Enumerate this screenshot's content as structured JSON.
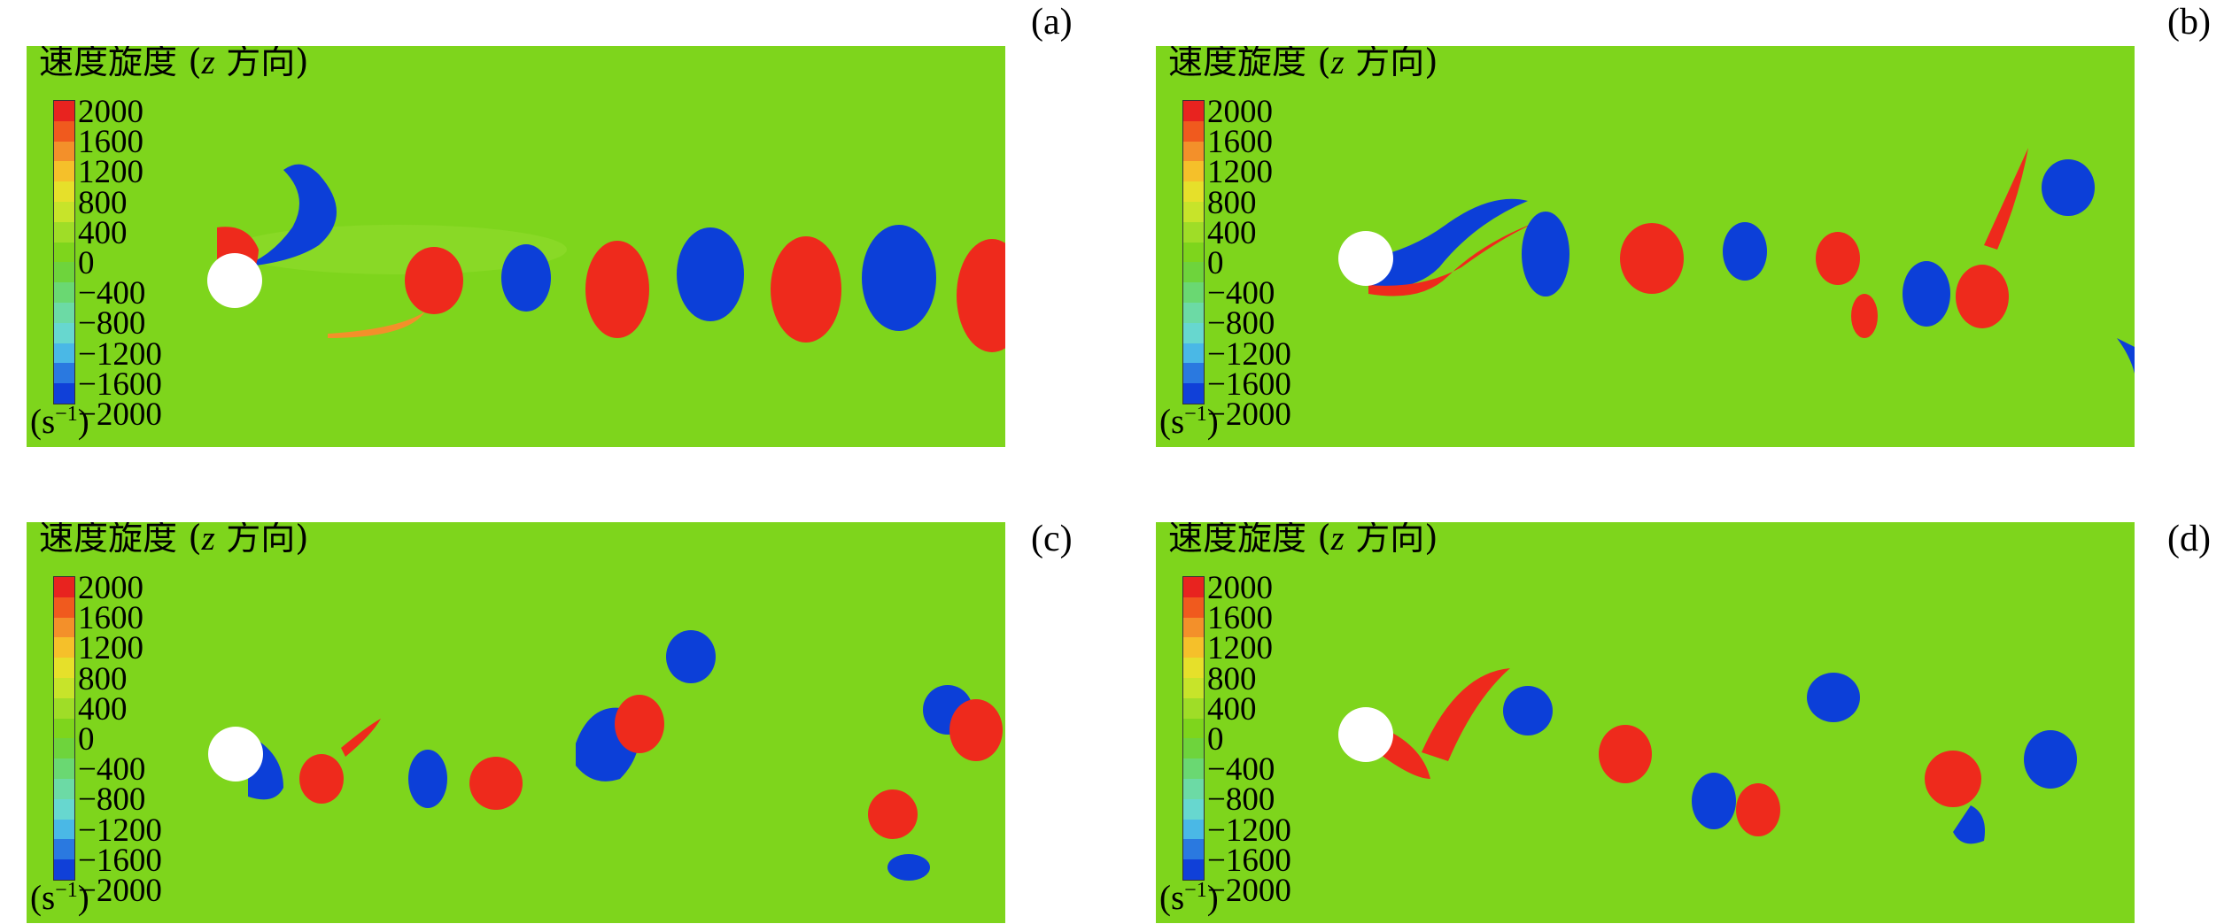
{
  "colorbar": {
    "title_main": "速度旋度 (",
    "title_var": "z",
    "title_tail": " 方向)",
    "ticks": [
      "2000",
      "1600",
      "1200",
      "800",
      "400",
      "0",
      "−400",
      "−800",
      "−1200",
      "−1600",
      "−2000"
    ],
    "unit_base": "(s",
    "unit_exp": "−1",
    "unit_close": ")",
    "colors": [
      "#e8231f",
      "#f05a1e",
      "#f3902a",
      "#f5c02a",
      "#e6e02a",
      "#c7e42a",
      "#9fdd27",
      "#7ed51c",
      "#6ed43c",
      "#6ad872",
      "#6cdaa5",
      "#67d7cf",
      "#4ab8e6",
      "#2a79e0",
      "#1040d8"
    ]
  },
  "panels": [
    {
      "label": "(a)"
    },
    {
      "label": "(b)"
    },
    {
      "label": "(c)"
    },
    {
      "label": "(d)"
    }
  ],
  "field_colors": {
    "background": "#7ed51c",
    "positive": "#ee2a1c",
    "negative": "#0c3fd8",
    "cylinder": "#ffffff"
  }
}
